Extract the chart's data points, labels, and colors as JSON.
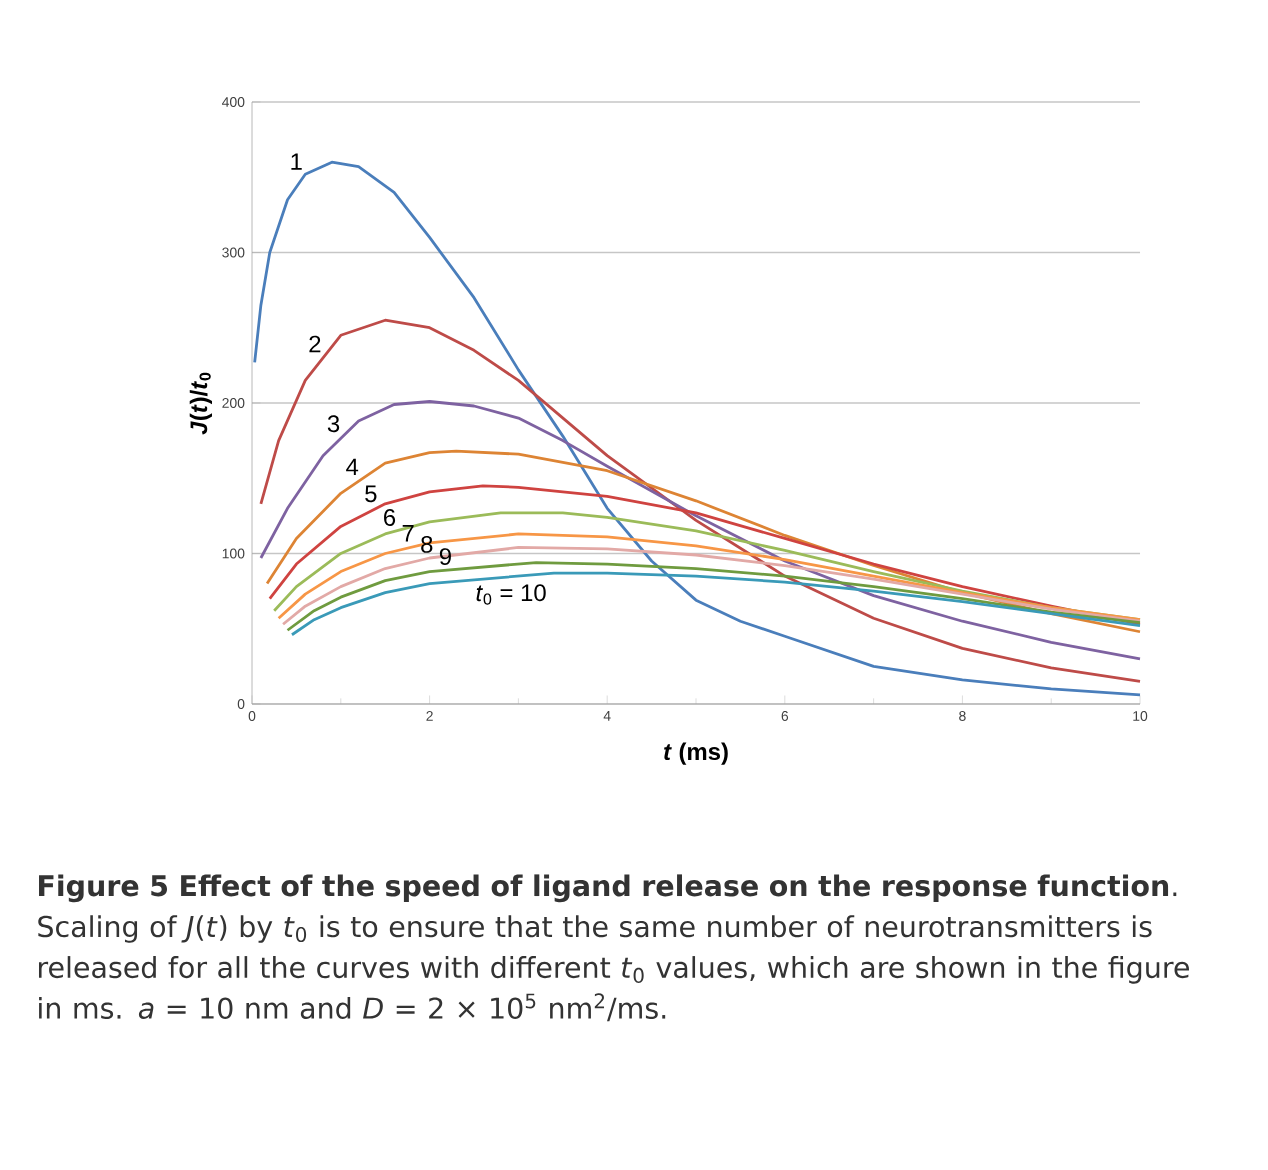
{
  "chart_data": {
    "type": "line",
    "xlabel": "*t* (ms)",
    "ylabel": "*J*(*t*)/*t*$_{0}$",
    "xlim": [
      0,
      10
    ],
    "ylim": [
      0,
      400
    ],
    "xticks": [
      0,
      2,
      4,
      6,
      8,
      10
    ],
    "yticks": [
      0,
      100,
      200,
      300,
      400
    ],
    "grid": "y",
    "marker": "none",
    "line_style": "solid",
    "series": [
      {
        "name": "1",
        "color": "#4a7ebb",
        "x": [
          0.03,
          0.1,
          0.2,
          0.4,
          0.6,
          0.9,
          1.2,
          1.6,
          2,
          2.5,
          3,
          3.5,
          4,
          4.5,
          5,
          5.5,
          6,
          7,
          8,
          9,
          10
        ],
        "values": [
          227,
          265,
          300,
          335,
          352,
          360,
          357,
          340,
          310,
          270,
          222,
          178,
          130,
          95,
          69,
          55,
          45,
          25,
          16,
          10,
          6
        ]
      },
      {
        "name": "2",
        "color": "#be4b48",
        "x": [
          0.1,
          0.3,
          0.6,
          1,
          1.5,
          2,
          2.5,
          3,
          3.5,
          4,
          5,
          6,
          7,
          8,
          9,
          10
        ],
        "values": [
          133,
          175,
          215,
          245,
          255,
          250,
          235,
          215,
          190,
          165,
          122,
          85,
          57,
          37,
          24,
          15
        ]
      },
      {
        "name": "3",
        "color": "#7e62a1",
        "x": [
          0.1,
          0.4,
          0.8,
          1.2,
          1.6,
          2,
          2.5,
          3,
          3.5,
          4,
          5,
          6,
          7,
          8,
          9,
          10
        ],
        "values": [
          97,
          130,
          165,
          188,
          199,
          201,
          198,
          190,
          175,
          158,
          125,
          95,
          72,
          55,
          41,
          30
        ]
      },
      {
        "name": "4",
        "color": "#dd8434",
        "x": [
          0.17,
          0.5,
          1,
          1.5,
          2,
          2.3,
          3,
          4,
          5,
          6,
          7,
          8,
          9,
          10
        ],
        "values": [
          80,
          110,
          140,
          160,
          167,
          168,
          166,
          155,
          135,
          112,
          92,
          74,
          60,
          48
        ]
      },
      {
        "name": "5",
        "color": "#cf4340",
        "x": [
          0.2,
          0.5,
          1,
          1.5,
          2,
          2.6,
          3,
          4,
          5,
          6,
          7,
          8,
          9,
          10
        ],
        "values": [
          70,
          93,
          118,
          133,
          141,
          145,
          144,
          138,
          127,
          110,
          93,
          78,
          65,
          53
        ]
      },
      {
        "name": "6",
        "color": "#9bbb59",
        "x": [
          0.25,
          0.5,
          1,
          1.5,
          2,
          2.8,
          3.5,
          4,
          5,
          6,
          7,
          8,
          9,
          10
        ],
        "values": [
          62,
          78,
          100,
          113,
          121,
          127,
          127,
          124,
          115,
          102,
          88,
          75,
          64,
          56
        ]
      },
      {
        "name": "7",
        "color": "#f79646",
        "x": [
          0.3,
          0.6,
          1,
          1.5,
          2,
          3,
          4,
          5,
          6,
          7,
          8,
          9,
          10
        ],
        "values": [
          57,
          73,
          88,
          100,
          107,
          113,
          111,
          105,
          96,
          85,
          74,
          64,
          56
        ]
      },
      {
        "name": "8",
        "color": "#e2a9a6",
        "x": [
          0.35,
          0.6,
          1,
          1.5,
          2,
          3,
          4,
          5,
          6,
          7,
          8,
          9,
          10
        ],
        "values": [
          53,
          65,
          78,
          90,
          97,
          104,
          103,
          99,
          92,
          83,
          73,
          63,
          55
        ]
      },
      {
        "name": "9",
        "color": "#6f9b3f",
        "x": [
          0.4,
          0.7,
          1,
          1.5,
          2,
          3.2,
          4,
          5,
          6,
          7,
          8,
          9,
          10
        ],
        "values": [
          49,
          62,
          71,
          82,
          88,
          94,
          93,
          90,
          85,
          78,
          70,
          61,
          54
        ]
      },
      {
        "name": "*t*$_{0}$ = 10",
        "color": "#3a9ab8",
        "x": [
          0.45,
          0.7,
          1,
          1.5,
          2,
          3.4,
          4,
          5,
          6,
          7,
          8,
          9,
          10
        ],
        "values": [
          46,
          56,
          64,
          74,
          80,
          87,
          87,
          85,
          81,
          75,
          68,
          60,
          52
        ]
      }
    ],
    "annotations": [
      "**Figure 5 Effect of the speed of ligand release on the response function**. Scaling of *J*(*t*) by *t*$_{0}$ is to ensure that the same number of neurotransmitters is released for all the curves with different *t*$_{0}$ values, which are shown in the figure in ms. *a* = 10 nm and *D* = 2 × 10$^{5}$ nm$^{2}$/ms."
    ]
  }
}
